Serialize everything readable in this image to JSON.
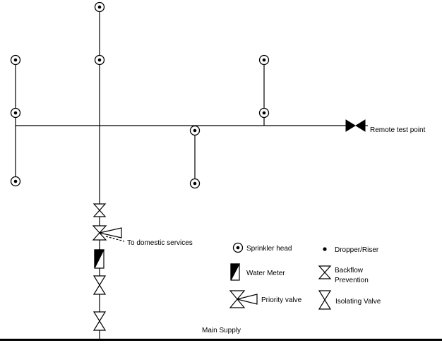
{
  "labels": {
    "remote_test_point": "Remote test point",
    "to_domestic_services": "To domestic services",
    "main_supply": "Main Supply"
  },
  "legend": {
    "sprinkler_head": "Sprinkler head",
    "dropper_riser": "Dropper/Riser",
    "water_meter": "Water Meter",
    "backflow_line1": "Backflow",
    "backflow_line2": "Prevention",
    "priority_valve": "Priority valve",
    "isolating_valve": "Isolating Valve"
  },
  "icons": {
    "sprinkler_head": "circle-with-dot-icon",
    "dropper_riser": "dot-icon",
    "water_meter": "half-filled-rectangle-icon",
    "backflow_prevention": "stacked-triangles-icon",
    "priority_valve": "three-way-valve-icon",
    "isolating_valve": "bowtie-valve-icon",
    "remote_test_valve": "filled-bowtie-valve-icon"
  },
  "colors": {
    "line": "#000000",
    "background": "#ffffff"
  }
}
